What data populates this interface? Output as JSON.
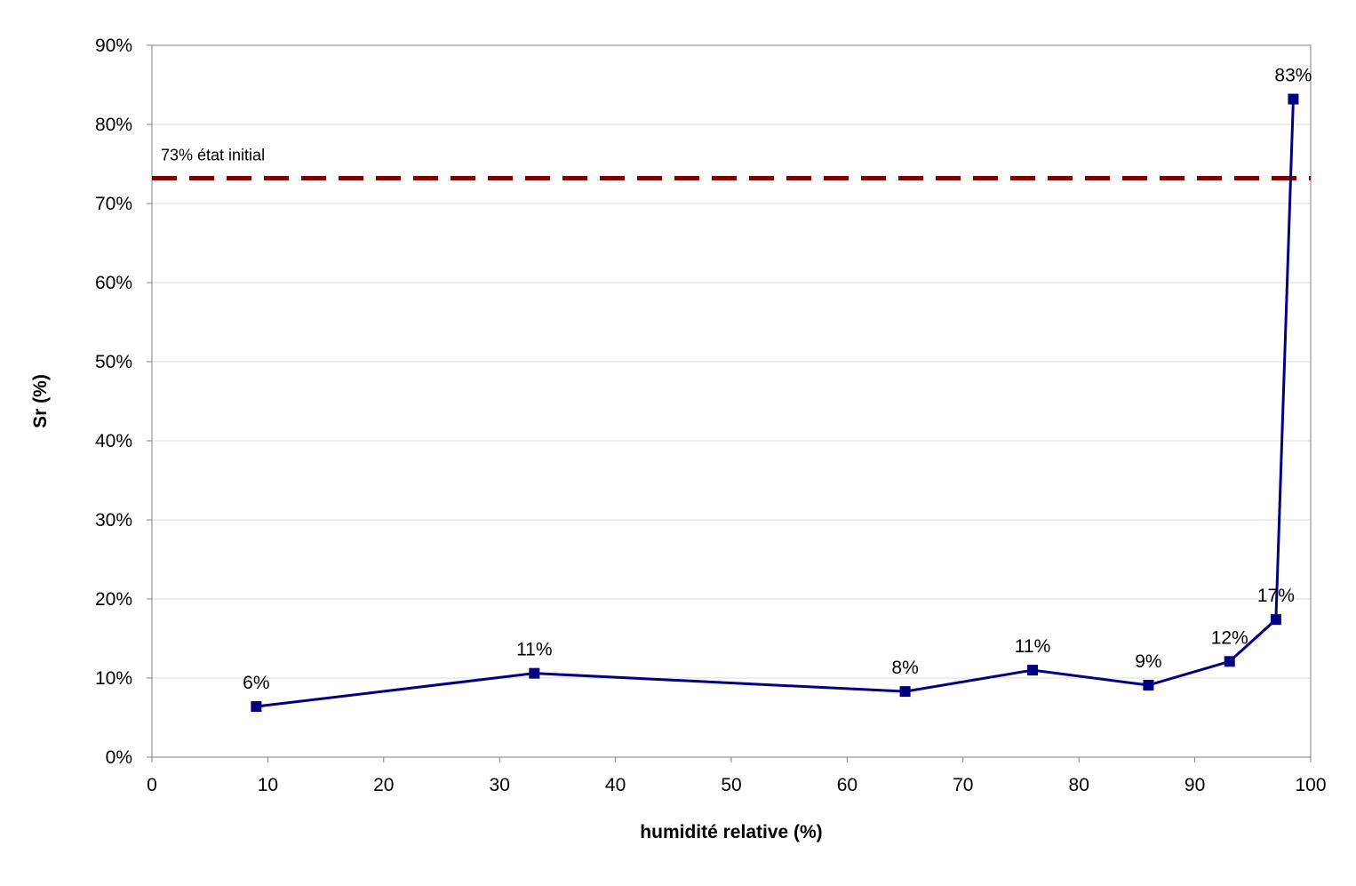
{
  "chart_data": {
    "type": "line",
    "title": "",
    "xlabel": "humidité relative (%)",
    "ylabel": "Sr (%)",
    "xlim": [
      0,
      100
    ],
    "ylim": [
      0,
      90
    ],
    "x_ticks": [
      "0",
      "10",
      "20",
      "30",
      "40",
      "50",
      "60",
      "70",
      "80",
      "90",
      "100"
    ],
    "y_ticks": [
      "0%",
      "10%",
      "20%",
      "30%",
      "40%",
      "50%",
      "60%",
      "70%",
      "80%",
      "90%"
    ],
    "grid": "horizontal",
    "series": [
      {
        "x": [
          9,
          33,
          65,
          76,
          86,
          93,
          97,
          98.5
        ],
        "y": [
          6.4,
          10.6,
          8.3,
          11.0,
          9.1,
          12.1,
          17.4,
          83.2
        ],
        "labels": [
          "6%",
          "11%",
          "8%",
          "11%",
          "9%",
          "12%",
          "17%",
          "83%"
        ],
        "color": "#000080"
      }
    ],
    "reference_line": {
      "y": 73.2,
      "label": "73% état initial",
      "color": "#800000"
    }
  }
}
